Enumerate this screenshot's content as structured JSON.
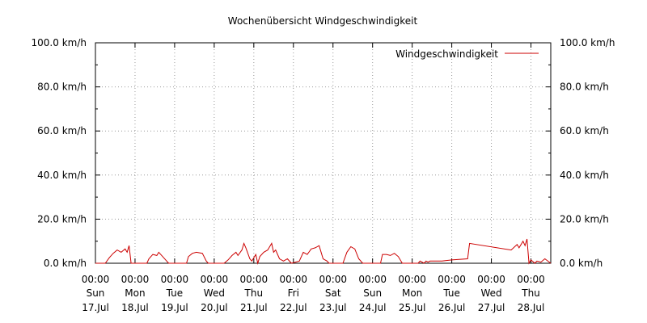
{
  "chart_data": {
    "type": "line",
    "title": "Wochenübersicht Windgeschwindigkeit",
    "xlabel": "",
    "ylabel": "",
    "ylim": [
      0,
      100
    ],
    "xlim": [
      "2022-07-17 00:00",
      "2022-07-28 12:00"
    ],
    "y_ticks": [
      "0.0 km/h",
      "20.0 km/h",
      "40.0 km/h",
      "60.0 km/h",
      "80.0 km/h",
      "100.0 km/h"
    ],
    "x_ticks": [
      {
        "time": "00:00",
        "day": "Sun",
        "date": "17.Jul"
      },
      {
        "time": "00:00",
        "day": "Mon",
        "date": "18.Jul"
      },
      {
        "time": "00:00",
        "day": "Tue",
        "date": "19.Jul"
      },
      {
        "time": "00:00",
        "day": "Wed",
        "date": "20.Jul"
      },
      {
        "time": "00:00",
        "day": "Thu",
        "date": "21.Jul"
      },
      {
        "time": "00:00",
        "day": "Fri",
        "date": "22.Jul"
      },
      {
        "time": "00:00",
        "day": "Sat",
        "date": "23.Jul"
      },
      {
        "time": "00:00",
        "day": "Sun",
        "date": "24.Jul"
      },
      {
        "time": "00:00",
        "day": "Mon",
        "date": "25.Jul"
      },
      {
        "time": "00:00",
        "day": "Tue",
        "date": "26.Jul"
      },
      {
        "time": "00:00",
        "day": "Wed",
        "date": "27.Jul"
      },
      {
        "time": "00:00",
        "day": "Thu",
        "date": "28.Jul"
      }
    ],
    "grid": true,
    "legend_position": "top-right",
    "series": [
      {
        "name": "Windgeschwindigkeit",
        "color": "#cc0000",
        "points": [
          [
            "2022-07-17 00:00",
            0
          ],
          [
            "2022-07-17 06:00",
            0
          ],
          [
            "2022-07-17 08:24",
            2.5
          ],
          [
            "2022-07-17 10:48",
            4.5
          ],
          [
            "2022-07-17 13:12",
            6
          ],
          [
            "2022-07-17 15:36",
            5
          ],
          [
            "2022-07-17 18:00",
            6.5
          ],
          [
            "2022-07-17 19:12",
            5
          ],
          [
            "2022-07-17 20:24",
            8
          ],
          [
            "2022-07-17 21:36",
            0
          ],
          [
            "2022-07-18 07:12",
            0
          ],
          [
            "2022-07-18 08:24",
            2
          ],
          [
            "2022-07-18 10:48",
            4
          ],
          [
            "2022-07-18 13:12",
            3.5
          ],
          [
            "2022-07-18 14:24",
            5
          ],
          [
            "2022-07-18 16:48",
            3
          ],
          [
            "2022-07-18 19:12",
            1
          ],
          [
            "2022-07-18 20:24",
            0
          ],
          [
            "2022-07-19 07:12",
            0
          ],
          [
            "2022-07-19 08:24",
            3
          ],
          [
            "2022-07-19 10:48",
            4.5
          ],
          [
            "2022-07-19 13:12",
            5
          ],
          [
            "2022-07-19 16:48",
            4.5
          ],
          [
            "2022-07-19 19:12",
            1
          ],
          [
            "2022-07-19 20:24",
            0
          ],
          [
            "2022-07-20 06:00",
            0
          ],
          [
            "2022-07-20 08:24",
            1.5
          ],
          [
            "2022-07-20 10:48",
            3.5
          ],
          [
            "2022-07-20 13:12",
            5
          ],
          [
            "2022-07-20 14:24",
            3.5
          ],
          [
            "2022-07-20 16:48",
            6
          ],
          [
            "2022-07-20 18:00",
            9
          ],
          [
            "2022-07-20 19:12",
            7
          ],
          [
            "2022-07-20 21:36",
            2
          ],
          [
            "2022-07-20 22:48",
            1
          ],
          [
            "2022-07-21 01:12",
            4
          ],
          [
            "2022-07-21 02:24",
            0
          ],
          [
            "2022-07-21 03:36",
            3
          ],
          [
            "2022-07-21 06:00",
            5
          ],
          [
            "2022-07-21 08:24",
            6
          ],
          [
            "2022-07-21 10:48",
            9
          ],
          [
            "2022-07-21 12:00",
            5
          ],
          [
            "2022-07-21 13:12",
            6
          ],
          [
            "2022-07-21 15:36",
            2
          ],
          [
            "2022-07-21 18:00",
            1
          ],
          [
            "2022-07-21 20:24",
            2
          ],
          [
            "2022-07-21 22:48",
            0
          ],
          [
            "2022-07-22 03:36",
            1
          ],
          [
            "2022-07-22 06:00",
            5
          ],
          [
            "2022-07-22 08:24",
            4
          ],
          [
            "2022-07-22 10:48",
            6.5
          ],
          [
            "2022-07-22 13:12",
            7
          ],
          [
            "2022-07-22 15:36",
            8
          ],
          [
            "2022-07-22 18:00",
            2
          ],
          [
            "2022-07-22 20:24",
            1
          ],
          [
            "2022-07-22 21:36",
            0
          ],
          [
            "2022-07-23 06:00",
            0
          ],
          [
            "2022-07-23 08:24",
            5
          ],
          [
            "2022-07-23 10:48",
            7.5
          ],
          [
            "2022-07-23 13:12",
            6.5
          ],
          [
            "2022-07-23 15:36",
            2
          ],
          [
            "2022-07-23 18:00",
            0
          ],
          [
            "2022-07-24 04:48",
            0
          ],
          [
            "2022-07-24 06:00",
            4
          ],
          [
            "2022-07-24 08:24",
            4
          ],
          [
            "2022-07-24 10:48",
            3.5
          ],
          [
            "2022-07-24 13:12",
            4.5
          ],
          [
            "2022-07-24 15:36",
            3
          ],
          [
            "2022-07-24 18:00",
            0
          ],
          [
            "2022-07-25 03:36",
            0
          ],
          [
            "2022-07-25 04:48",
            1
          ],
          [
            "2022-07-25 07:12",
            0
          ],
          [
            "2022-07-25 08:24",
            1
          ],
          [
            "2022-07-25 09:36",
            0.5
          ],
          [
            "2022-07-25 10:48",
            1
          ],
          [
            "2022-07-25 18:00",
            1
          ],
          [
            "2022-07-26 00:00",
            1.5
          ],
          [
            "2022-07-26 09:36",
            2
          ],
          [
            "2022-07-26 10:48",
            9
          ],
          [
            "2022-07-27 12:00",
            6
          ],
          [
            "2022-07-27 15:36",
            8.5
          ],
          [
            "2022-07-27 16:48",
            7
          ],
          [
            "2022-07-27 19:12",
            10
          ],
          [
            "2022-07-27 20:24",
            8
          ],
          [
            "2022-07-27 21:36",
            11
          ],
          [
            "2022-07-27 22:48",
            0
          ],
          [
            "2022-07-28 00:00",
            1.5
          ],
          [
            "2022-07-28 02:24",
            0
          ],
          [
            "2022-07-28 03:36",
            1
          ],
          [
            "2022-07-28 06:00",
            0.5
          ],
          [
            "2022-07-28 08:24",
            2
          ],
          [
            "2022-07-28 12:00",
            0
          ]
        ]
      }
    ]
  }
}
